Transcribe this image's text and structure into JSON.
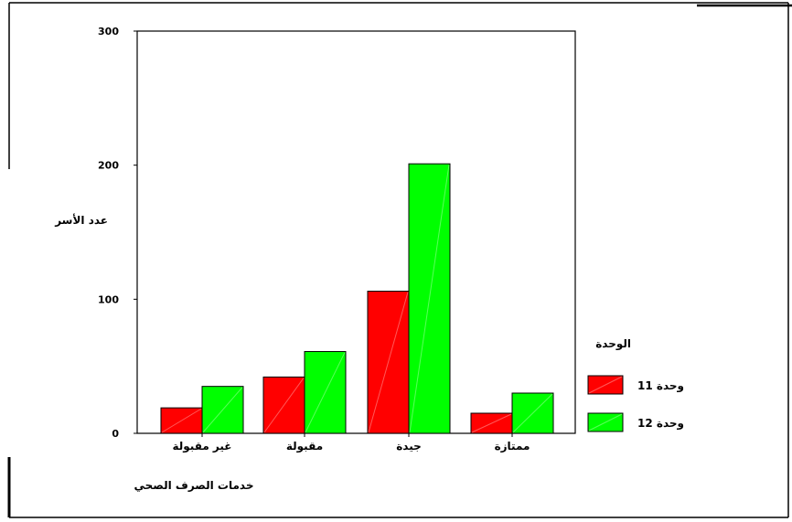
{
  "chart_data": {
    "type": "bar",
    "ylabel": "عدد الأسر",
    "xlabel": "خدمات الصرف الصحي",
    "categories": [
      "غير مقبولة",
      "مقبولة",
      "جيدة",
      "ممتازة"
    ],
    "series": [
      {
        "name": "وحدة 11",
        "values": [
          19,
          42,
          106,
          15
        ],
        "color": "#ff0000"
      },
      {
        "name": "وحدة 12",
        "values": [
          35,
          61,
          201,
          30
        ],
        "color": "#00ff00"
      }
    ],
    "y_ticks": [
      0,
      100,
      200,
      300
    ],
    "ylim": [
      0,
      300
    ],
    "legend_title": "الوحدة",
    "legend_position": "right",
    "grid": false
  }
}
